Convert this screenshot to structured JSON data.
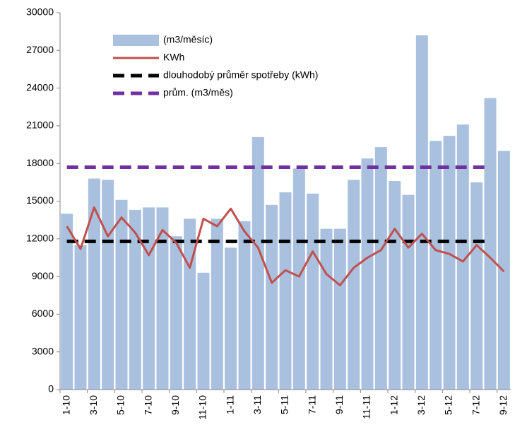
{
  "chart_data": {
    "type": "bar-line",
    "categories": [
      "1-10",
      null,
      "3-10",
      null,
      "5-10",
      null,
      "7-10",
      null,
      "9-10",
      null,
      "11-10",
      null,
      "1-11",
      null,
      "3-11",
      null,
      "5-11",
      null,
      "7-11",
      null,
      "9-11",
      null,
      "11-11",
      null,
      "1-12",
      null,
      "3-12",
      null,
      "5-12",
      null,
      "7-12",
      null,
      "9-12"
    ],
    "series": [
      {
        "name": "(m3/měsíc)",
        "kind": "bar",
        "color": "#a9c1df",
        "values": [
          14000,
          11500,
          16800,
          16700,
          15100,
          14300,
          14500,
          14500,
          12200,
          13600,
          9300,
          13600,
          11300,
          13400,
          20100,
          14700,
          15700,
          17600,
          15600,
          12800,
          12800,
          16700,
          18400,
          19300,
          16600,
          15500,
          28200,
          19800,
          20200,
          21100,
          16500,
          23200,
          19000
        ]
      },
      {
        "name": "KWh",
        "kind": "line",
        "color": "#c0504d",
        "values": [
          13000,
          11200,
          14500,
          12200,
          13700,
          12500,
          10700,
          12700,
          11700,
          9700,
          13600,
          13000,
          14400,
          12600,
          11300,
          8500,
          9500,
          9000,
          11000,
          9200,
          8300,
          9700,
          10500,
          11100,
          12800,
          11300,
          12400,
          11100,
          10800,
          10200,
          11500,
          10500,
          9400
        ]
      },
      {
        "name": "dlouhodobý průměr spotřeby (kWh)",
        "kind": "dashed",
        "color": "#000000",
        "values": [
          11800,
          11800,
          11800,
          11800,
          11800,
          11800,
          11800,
          11800,
          11800,
          11800,
          11800,
          11800,
          11800,
          11800,
          11800,
          11800,
          11800,
          11800,
          11800,
          11800,
          11800,
          11800,
          11800,
          11800,
          11800,
          11800,
          11800,
          11800,
          11800,
          11800,
          11800,
          11800,
          null
        ]
      },
      {
        "name": "prům. (m3/měs)",
        "kind": "dashed",
        "color": "#7030a0",
        "values": [
          17700,
          17700,
          17700,
          17700,
          17700,
          17700,
          17700,
          17700,
          17700,
          17700,
          17700,
          17700,
          17700,
          17700,
          17700,
          17700,
          17700,
          17700,
          17700,
          17700,
          17700,
          17700,
          17700,
          17700,
          17700,
          17700,
          17700,
          17700,
          17700,
          17700,
          17700,
          17700,
          null
        ]
      }
    ],
    "ylim": [
      0,
      30000
    ],
    "yticks": [
      0,
      3000,
      6000,
      9000,
      12000,
      15000,
      18000,
      21000,
      24000,
      27000,
      30000
    ],
    "legend": "upper-left",
    "grid": false
  }
}
